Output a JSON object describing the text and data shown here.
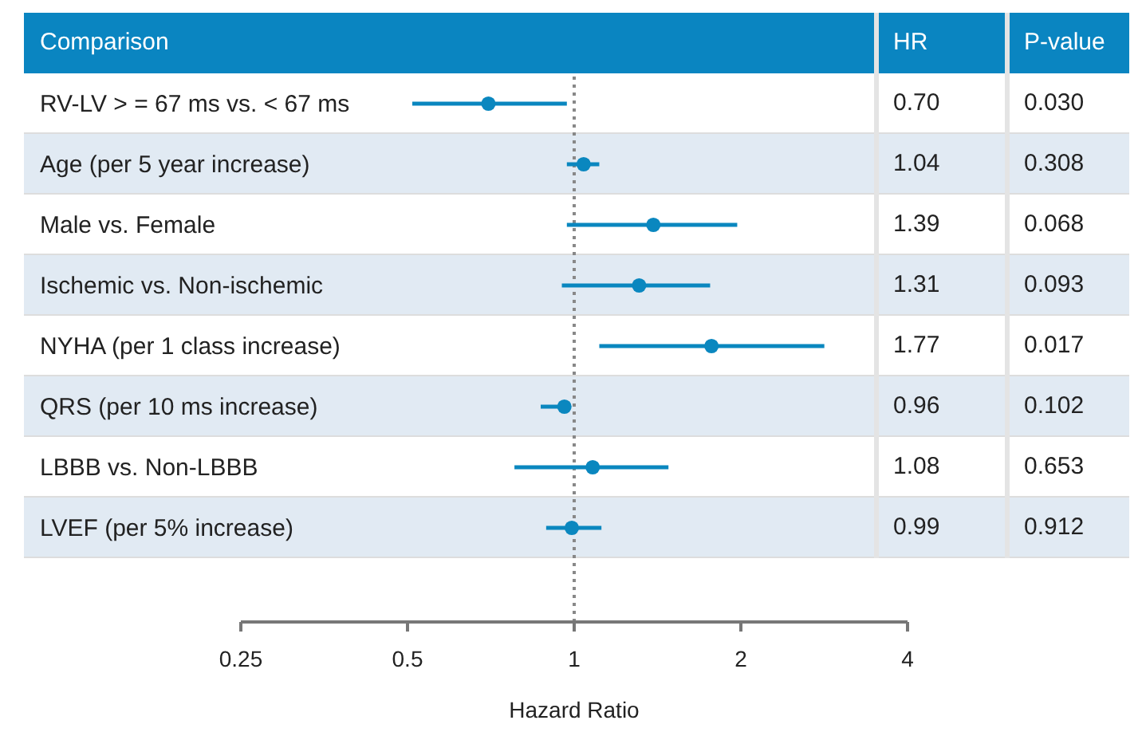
{
  "chart_data": {
    "type": "scatter",
    "orientation": "horizontal",
    "ylabel": "Comparison",
    "xlabel": "Hazard Ratio",
    "categories": [
      "RV-LV > = 67 ms vs. < 67 ms",
      "Age (per 5 year increase)",
      "Male vs. Female",
      "Ischemic vs. Non-ischemic",
      "NYHA (per 1 class increase)",
      "QRS (per 10 ms increase)",
      "LBBB vs. Non-LBBB",
      "LVEF (per 5% increase)"
    ],
    "values": [
      0.7,
      1.04,
      1.39,
      1.31,
      1.77,
      0.96,
      1.08,
      0.99
    ],
    "errors": [
      [
        0.51,
        0.97
      ],
      [
        0.97,
        1.11
      ],
      [
        0.97,
        1.97
      ],
      [
        0.95,
        1.76
      ],
      [
        1.11,
        2.83
      ],
      [
        0.87,
        0.94
      ],
      [
        0.78,
        1.48
      ],
      [
        0.89,
        1.12
      ]
    ],
    "color": "#0a87bf",
    "marker": "circle",
    "log": "x",
    "xlim": [
      0.25,
      4
    ],
    "xticks": [
      0.25,
      0.5,
      1,
      2,
      4
    ],
    "ref_lines": [
      {
        "axis": "x",
        "value": 1,
        "color": "#888888",
        "line_style": "dotted"
      }
    ],
    "annotations": [
      "HR",
      "P-value",
      "0.70",
      "1.04",
      "1.39",
      "1.31",
      "1.77",
      "0.96",
      "1.08",
      "0.99",
      "0.030",
      "0.308",
      "0.068",
      "0.093",
      "0.017",
      "0.102",
      "0.653",
      "0.912"
    ]
  }
}
